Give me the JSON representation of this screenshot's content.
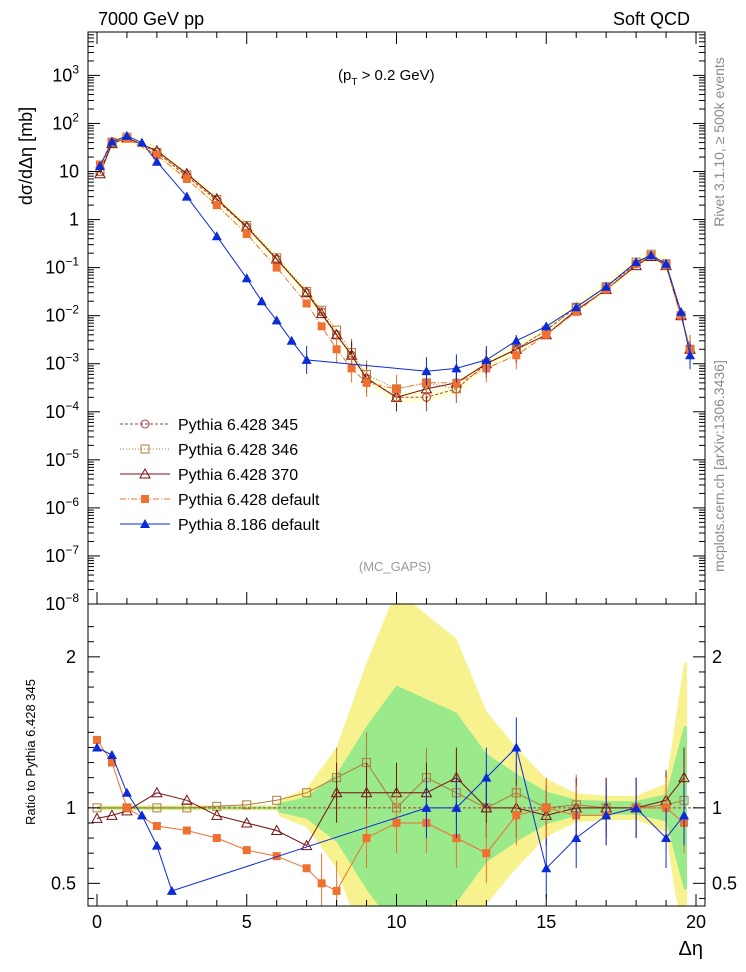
{
  "header": {
    "left": "7000 GeV pp",
    "right": "Soft QCD",
    "cut": "(p",
    "cut_sub": "T",
    "cut_rest": " > 0.2 GeV)",
    "watermark": "(MC_GAPS)"
  },
  "side_text": {
    "rivet": "Rivet 3.1.10, ≥ 500k events",
    "mcplots": "mcplots.cern.ch [arXiv:1306.3436]"
  },
  "chart_data": {
    "type": "scatter",
    "top_panel": {
      "ylabel": "dσ/dΔη [mb]",
      "yscale": "log",
      "ylim": [
        1e-08,
        8000
      ],
      "y_ticks": [
        {
          "value": 1000,
          "label": "10",
          "exp": "3"
        },
        {
          "value": 100,
          "label": "10",
          "exp": "2"
        },
        {
          "value": 10,
          "label": "10",
          "exp": ""
        },
        {
          "value": 1,
          "label": "1",
          "exp": ""
        },
        {
          "value": 0.1,
          "label": "10",
          "exp": "−1"
        },
        {
          "value": 0.01,
          "label": "10",
          "exp": "−2"
        },
        {
          "value": 0.001,
          "label": "10",
          "exp": "−3"
        },
        {
          "value": 0.0001,
          "label": "10",
          "exp": "−4"
        },
        {
          "value": 1e-05,
          "label": "10",
          "exp": "−5"
        },
        {
          "value": 1e-06,
          "label": "10",
          "exp": "−6"
        },
        {
          "value": 1e-07,
          "label": "10",
          "exp": "−7"
        },
        {
          "value": 1e-08,
          "label": "10",
          "exp": "−8"
        }
      ],
      "series": [
        {
          "name": "Pythia 6.428 345",
          "color": "#b03a3a",
          "marker": "circle-open",
          "x": [
            0.1,
            0.5,
            1,
            2,
            3,
            4,
            5,
            6,
            7,
            7.5,
            8,
            8.5,
            9,
            10,
            11,
            12,
            13,
            14,
            15,
            16,
            17,
            18,
            18.5,
            19,
            19.5,
            19.8
          ],
          "y": [
            10,
            40,
            50,
            25,
            8,
            2.5,
            0.7,
            0.15,
            0.03,
            0.012,
            0.004,
            0.0015,
            0.0005,
            0.0002,
            0.0002,
            0.0003,
            0.001,
            0.002,
            0.005,
            0.015,
            0.04,
            0.12,
            0.18,
            0.12,
            0.01,
            0.002
          ]
        },
        {
          "name": "Pythia 6.428 346",
          "color": "#b07a3a",
          "marker": "square-open",
          "x": [
            0.1,
            0.5,
            1,
            2,
            3,
            4,
            5,
            6,
            7,
            7.5,
            8,
            8.5,
            9,
            10,
            11,
            12,
            13,
            14,
            15,
            16,
            17,
            18,
            18.5,
            19,
            19.5,
            19.8
          ],
          "y": [
            10,
            40,
            52,
            25,
            8.5,
            2.6,
            0.75,
            0.16,
            0.032,
            0.013,
            0.005,
            0.0017,
            0.0006,
            0.0003,
            0.0004,
            0.0003,
            0.001,
            0.002,
            0.005,
            0.015,
            0.04,
            0.13,
            0.19,
            0.12,
            0.01,
            0.002
          ]
        },
        {
          "name": "Pythia 6.428 370",
          "color": "#7a1010",
          "marker": "triangle-open",
          "x": [
            0.1,
            0.5,
            1,
            2,
            3,
            4,
            5,
            6,
            7,
            7.5,
            8,
            8.5,
            9,
            10,
            11,
            12,
            13,
            14,
            15,
            16,
            17,
            18,
            18.5,
            19,
            19.5,
            19.8
          ],
          "y": [
            9,
            38,
            50,
            27,
            9,
            2.7,
            0.7,
            0.15,
            0.03,
            0.011,
            0.004,
            0.0015,
            0.0005,
            0.0002,
            0.0003,
            0.0004,
            0.001,
            0.002,
            0.004,
            0.013,
            0.035,
            0.11,
            0.17,
            0.11,
            0.01,
            0.002
          ]
        },
        {
          "name": "Pythia 6.428 default",
          "color": "#f07030",
          "marker": "square-filled",
          "x": [
            0.1,
            0.5,
            1,
            2,
            3,
            4,
            5,
            6,
            7,
            7.5,
            8,
            8.5,
            9,
            10,
            11,
            12,
            13,
            14,
            15,
            16,
            17,
            18,
            18.5,
            19,
            19.5,
            19.8
          ],
          "y": [
            14,
            42,
            48,
            22,
            7,
            2,
            0.5,
            0.1,
            0.018,
            0.006,
            0.002,
            0.0008,
            0.0004,
            0.0003,
            0.0004,
            0.0004,
            0.0008,
            0.0015,
            0.004,
            0.012,
            0.035,
            0.12,
            0.18,
            0.11,
            0.01,
            0.002
          ]
        },
        {
          "name": "Pythia 8.186 default",
          "color": "#0b2bd8",
          "marker": "triangle-filled",
          "x": [
            0.1,
            0.5,
            1,
            1.5,
            2,
            3,
            4,
            5,
            5.5,
            6,
            6.5,
            7,
            11,
            12,
            13,
            14,
            15,
            16,
            17,
            18,
            18.5,
            19,
            19.5,
            19.8
          ],
          "y": [
            13,
            42,
            55,
            40,
            16,
            3,
            0.45,
            0.06,
            0.02,
            0.008,
            0.003,
            0.0012,
            0.0007,
            0.0008,
            0.0012,
            0.003,
            0.006,
            0.015,
            0.04,
            0.13,
            0.18,
            0.12,
            0.012,
            0.0015
          ]
        }
      ]
    },
    "bottom_panel": {
      "ylabel": "Ratio to Pythia 6.428 345",
      "ylim": [
        0.35,
        2.35
      ],
      "y_ticks": [
        0.5,
        1,
        2
      ],
      "reference": 1,
      "series": [
        {
          "name": "Pythia 6.428 346",
          "x": [
            0,
            1,
            2,
            3,
            4,
            5,
            6,
            7,
            8,
            9,
            10,
            11,
            12,
            13,
            14,
            15,
            16,
            17,
            18,
            19,
            19.6
          ],
          "y": [
            1,
            1,
            1,
            1,
            1.01,
            1.02,
            1.05,
            1.1,
            1.2,
            1.3,
            1.0,
            1.2,
            1.1,
            1.0,
            1.1,
            1.0,
            1.02,
            1.0,
            1.0,
            1.02,
            1.05
          ]
        },
        {
          "name": "Pythia 6.428 370",
          "x": [
            0,
            0.5,
            1,
            2,
            3,
            4,
            5,
            6,
            7,
            8,
            9,
            10,
            11,
            12,
            13,
            14,
            15,
            16,
            17,
            18,
            19,
            19.6
          ],
          "y": [
            0.93,
            0.95,
            0.98,
            1.1,
            1.05,
            0.95,
            0.9,
            0.85,
            0.75,
            1.1,
            1.1,
            1.1,
            1.1,
            1.2,
            1.0,
            1.0,
            0.95,
            1.0,
            1.0,
            1.0,
            1.05,
            1.2
          ]
        },
        {
          "name": "Pythia 6.428 default",
          "x": [
            0,
            0.5,
            1,
            2,
            3,
            4,
            5,
            6,
            7,
            7.5,
            8,
            9,
            10,
            11,
            12,
            13,
            14,
            15,
            16,
            17,
            18,
            19,
            19.6
          ],
          "y": [
            1.45,
            1.3,
            1.0,
            0.88,
            0.85,
            0.8,
            0.72,
            0.68,
            0.6,
            0.5,
            0.45,
            0.8,
            0.9,
            0.9,
            0.8,
            0.7,
            0.95,
            1.0,
            0.95,
            0.95,
            1.0,
            1.0,
            0.9
          ]
        },
        {
          "name": "Pythia 8.186 default",
          "x": [
            0,
            0.5,
            1,
            1.5,
            2,
            2.5,
            11,
            12,
            13,
            14,
            15,
            16,
            17,
            18,
            19,
            19.6
          ],
          "y": [
            1.4,
            1.35,
            1.1,
            0.95,
            0.75,
            0.45,
            1.0,
            1.0,
            1.2,
            1.4,
            0.6,
            0.8,
            0.95,
            1.0,
            0.8,
            0.95
          ]
        }
      ]
    },
    "x_axis": {
      "label": "Δη",
      "xlim": [
        -0.3,
        20.3
      ],
      "ticks": [
        0,
        5,
        10,
        15,
        20
      ]
    }
  }
}
